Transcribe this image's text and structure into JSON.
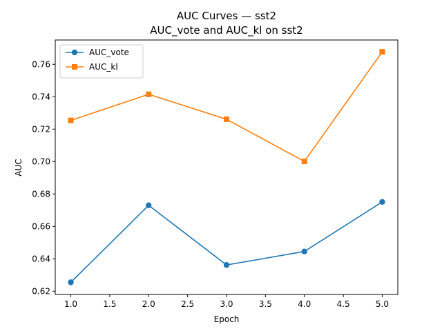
{
  "chart_data": {
    "type": "line",
    "title": "AUC Curves — sst2",
    "subtitle": "AUC_vote and AUC_kl on sst2",
    "xlabel": "Epoch",
    "ylabel": "AUC",
    "xlim": [
      0.8,
      5.2
    ],
    "ylim": [
      0.618,
      0.775
    ],
    "xticks": [
      "1.0",
      "1.5",
      "2.0",
      "2.5",
      "3.0",
      "3.5",
      "4.0",
      "4.5",
      "5.0"
    ],
    "yticks": [
      "0.62",
      "0.64",
      "0.66",
      "0.68",
      "0.70",
      "0.72",
      "0.74",
      "0.76"
    ],
    "grid": false,
    "legend_position": "upper-left",
    "x": [
      1,
      2,
      3,
      4,
      5
    ],
    "series": [
      {
        "name": "AUC_vote",
        "color": "#1f77b4",
        "marker": "circle",
        "values": [
          0.6255,
          0.673,
          0.6362,
          0.6445,
          0.6751
        ]
      },
      {
        "name": "AUC_kl",
        "color": "#ff7f0e",
        "marker": "square",
        "values": [
          0.7254,
          0.7415,
          0.7261,
          0.7001,
          0.7677
        ]
      }
    ]
  }
}
